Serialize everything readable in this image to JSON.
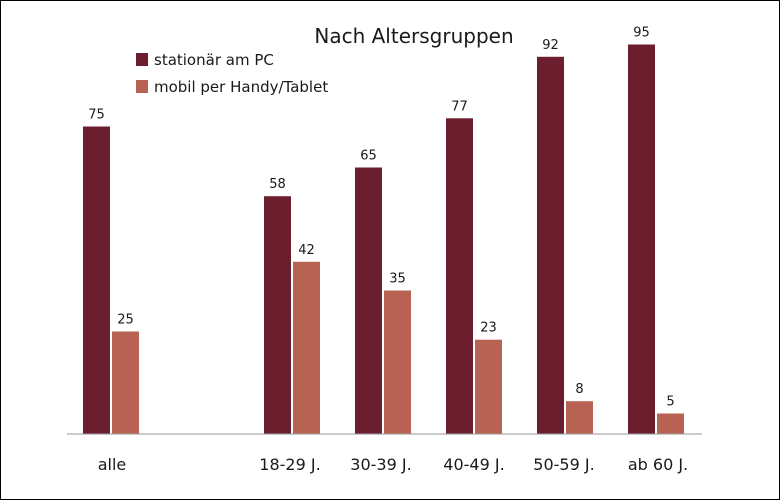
{
  "chart_data": {
    "type": "bar",
    "title": "Nach Altersgruppen",
    "categories": [
      "alle",
      "18-29 J.",
      "30-39 J.",
      "40-49 J.",
      "50-59 J.",
      "ab 60 J."
    ],
    "series": [
      {
        "name": "stationär am PC",
        "values": [
          75,
          58,
          65,
          77,
          92,
          95
        ],
        "color": "#6b1f2e"
      },
      {
        "name": "mobil per Handy/Tablet",
        "values": [
          25,
          42,
          35,
          23,
          8,
          5
        ],
        "color": "#b86253"
      }
    ],
    "ylim": [
      0,
      100
    ],
    "xlabel": "",
    "ylabel": "",
    "grid": false,
    "legend": "top-left",
    "value_labels": true
  }
}
